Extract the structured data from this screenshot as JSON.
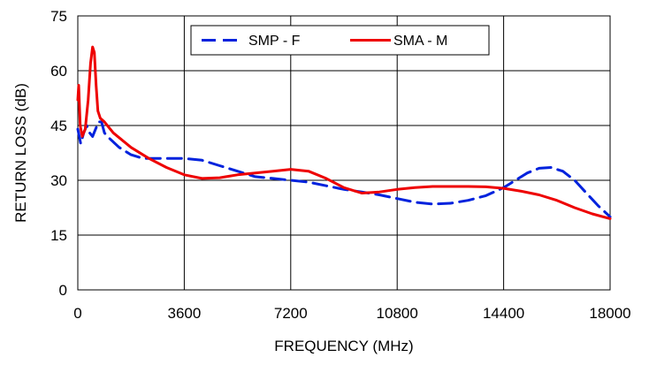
{
  "chart_data": {
    "type": "line",
    "xlabel": "FREQUENCY (MHz)",
    "ylabel": "RETURN LOSS (dB)",
    "xlim": [
      0,
      18000
    ],
    "ylim": [
      0,
      75
    ],
    "x_ticks": [
      0,
      3600,
      7200,
      10800,
      14400,
      18000
    ],
    "y_ticks": [
      0,
      15,
      30,
      45,
      60,
      75
    ],
    "grid": true,
    "legend_position": "top-center",
    "series": [
      {
        "name": "SMP - F",
        "color": "#0022dd",
        "dash": "dashed",
        "x": [
          0,
          100,
          200,
          300,
          400,
          500,
          600,
          700,
          800,
          900,
          1000,
          1400,
          1800,
          2200,
          2600,
          3000,
          3600,
          4200,
          4800,
          5400,
          6000,
          6600,
          7200,
          7800,
          8400,
          9000,
          9600,
          10200,
          10800,
          11400,
          12000,
          12600,
          13200,
          13800,
          14400,
          14800,
          15200,
          15600,
          16000,
          16400,
          16800,
          17200,
          17600,
          18000
        ],
        "y": [
          44,
          40,
          43,
          45,
          43,
          42,
          44,
          46,
          46,
          43,
          42,
          39,
          37,
          36,
          36,
          36,
          36,
          35.5,
          34,
          32.5,
          31,
          30.5,
          30,
          29.5,
          28.5,
          27.5,
          26.8,
          26,
          25,
          24,
          23.5,
          23.7,
          24.5,
          25.8,
          28,
          30,
          32,
          33.3,
          33.5,
          32.5,
          30,
          26.5,
          23,
          20
        ]
      },
      {
        "name": "SMA - M",
        "color": "#ee0000",
        "dash": "solid",
        "x": [
          0,
          30,
          80,
          150,
          250,
          350,
          430,
          500,
          560,
          620,
          680,
          760,
          900,
          1200,
          1800,
          2400,
          3000,
          3600,
          4200,
          4800,
          5400,
          6000,
          6600,
          7200,
          7800,
          8400,
          9000,
          9600,
          10200,
          10800,
          11400,
          12000,
          12600,
          13200,
          13800,
          14400,
          15000,
          15600,
          16200,
          16800,
          17400,
          18000
        ],
        "y": [
          52,
          56,
          45,
          42,
          44,
          52,
          62,
          66.5,
          65,
          56,
          49,
          47,
          46,
          43,
          39,
          36,
          33.5,
          31.5,
          30.5,
          30.7,
          31.5,
          32,
          32.5,
          33,
          32.5,
          30.5,
          28,
          26.5,
          26.8,
          27.5,
          28,
          28.3,
          28.3,
          28.3,
          28.2,
          27.8,
          27,
          26,
          24.5,
          22.5,
          20.8,
          19.5
        ]
      }
    ]
  }
}
